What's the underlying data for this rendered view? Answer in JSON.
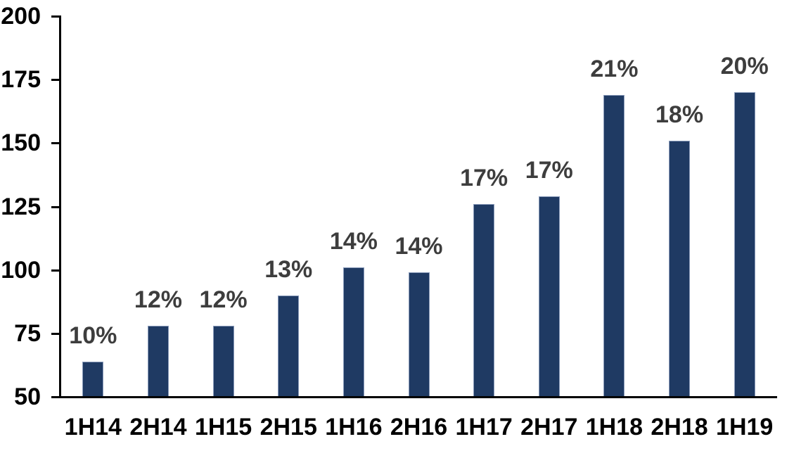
{
  "chart_data": {
    "type": "bar",
    "title": "",
    "xlabel": "",
    "ylabel": "",
    "categories": [
      "1H14",
      "2H14",
      "1H15",
      "2H15",
      "1H16",
      "2H16",
      "1H17",
      "2H17",
      "1H18",
      "2H18",
      "1H19"
    ],
    "values": [
      64,
      78,
      78,
      90,
      101,
      99,
      126,
      129,
      169,
      151,
      170
    ],
    "bar_labels": [
      "10%",
      "12%",
      "12%",
      "13%",
      "14%",
      "14%",
      "17%",
      "17%",
      "21%",
      "18%",
      "20%"
    ],
    "ylim": [
      50,
      200
    ],
    "y_ticks": [
      50,
      75,
      100,
      125,
      150,
      175,
      200
    ],
    "grid": false,
    "legend": false,
    "bar_color": "#1f3a63",
    "bar_edge_color": "#8b9cbb",
    "bar_label_color": "#3d3d3d",
    "axis_color": "#000000",
    "tick_label_color": "#000000"
  }
}
